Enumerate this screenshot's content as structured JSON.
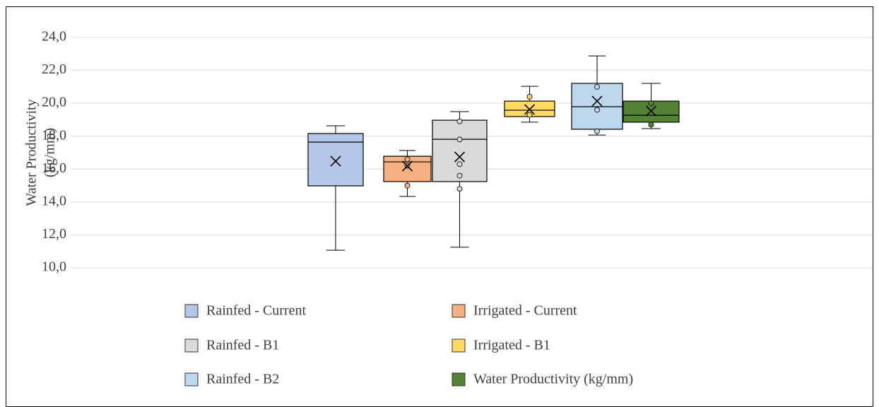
{
  "chart_data": {
    "type": "box",
    "y_label": [
      "Water Productivity",
      "(kg/mm)"
    ],
    "ylim": [
      10,
      24
    ],
    "yticks": [
      {
        "value": 10,
        "label": "10,0"
      },
      {
        "value": 12,
        "label": "12,0"
      },
      {
        "value": 14,
        "label": "14,0"
      },
      {
        "value": 16,
        "label": "16,0"
      },
      {
        "value": 18,
        "label": "18,0"
      },
      {
        "value": 20,
        "label": "20,0"
      },
      {
        "value": 22,
        "label": "22,0"
      },
      {
        "value": 24,
        "label": "24,0"
      }
    ],
    "grid": true,
    "series": [
      {
        "name": "Rainfed - Current",
        "color": "#b4c7e7",
        "whisker_low": 11.07,
        "q1": 14.98,
        "median": 17.64,
        "q3": 18.16,
        "whisker_high": 18.63,
        "mean": 16.48,
        "points": []
      },
      {
        "name": "Irrigated - Current",
        "color": "#f4b183",
        "whisker_low": 14.34,
        "q1": 15.24,
        "median": 16.44,
        "q3": 16.78,
        "whisker_high": 17.13,
        "mean": 16.18,
        "points": [
          16.6,
          16.2,
          15.0
        ]
      },
      {
        "name": "Rainfed - B1",
        "color": "#d9d9d9",
        "whisker_low": 11.25,
        "q1": 15.24,
        "median": 17.81,
        "q3": 18.97,
        "whisker_high": 19.49,
        "mean": 16.74,
        "points": [
          18.9,
          17.8,
          16.3,
          15.6,
          14.8
        ]
      },
      {
        "name": "Irrigated - B1",
        "color": "#ffd966",
        "whisker_low": 18.85,
        "q1": 19.19,
        "median": 19.58,
        "q3": 20.13,
        "whisker_high": 21.03,
        "mean": 19.62,
        "points": [
          20.4,
          19.3
        ]
      },
      {
        "name": "Rainfed - B2",
        "color": "#bdd7ee",
        "whisker_low": 18.07,
        "q1": 18.42,
        "median": 19.79,
        "q3": 21.21,
        "whisker_high": 22.88,
        "mean": 20.13,
        "points": [
          21.0,
          19.6,
          18.3
        ]
      },
      {
        "name": "Water Productivity (kg/mm)",
        "color": "#548235",
        "whisker_low": 18.46,
        "q1": 18.85,
        "median": 19.27,
        "q3": 20.13,
        "whisker_high": 21.21,
        "mean": 19.53,
        "points": [
          20.0,
          18.7
        ]
      }
    ]
  }
}
